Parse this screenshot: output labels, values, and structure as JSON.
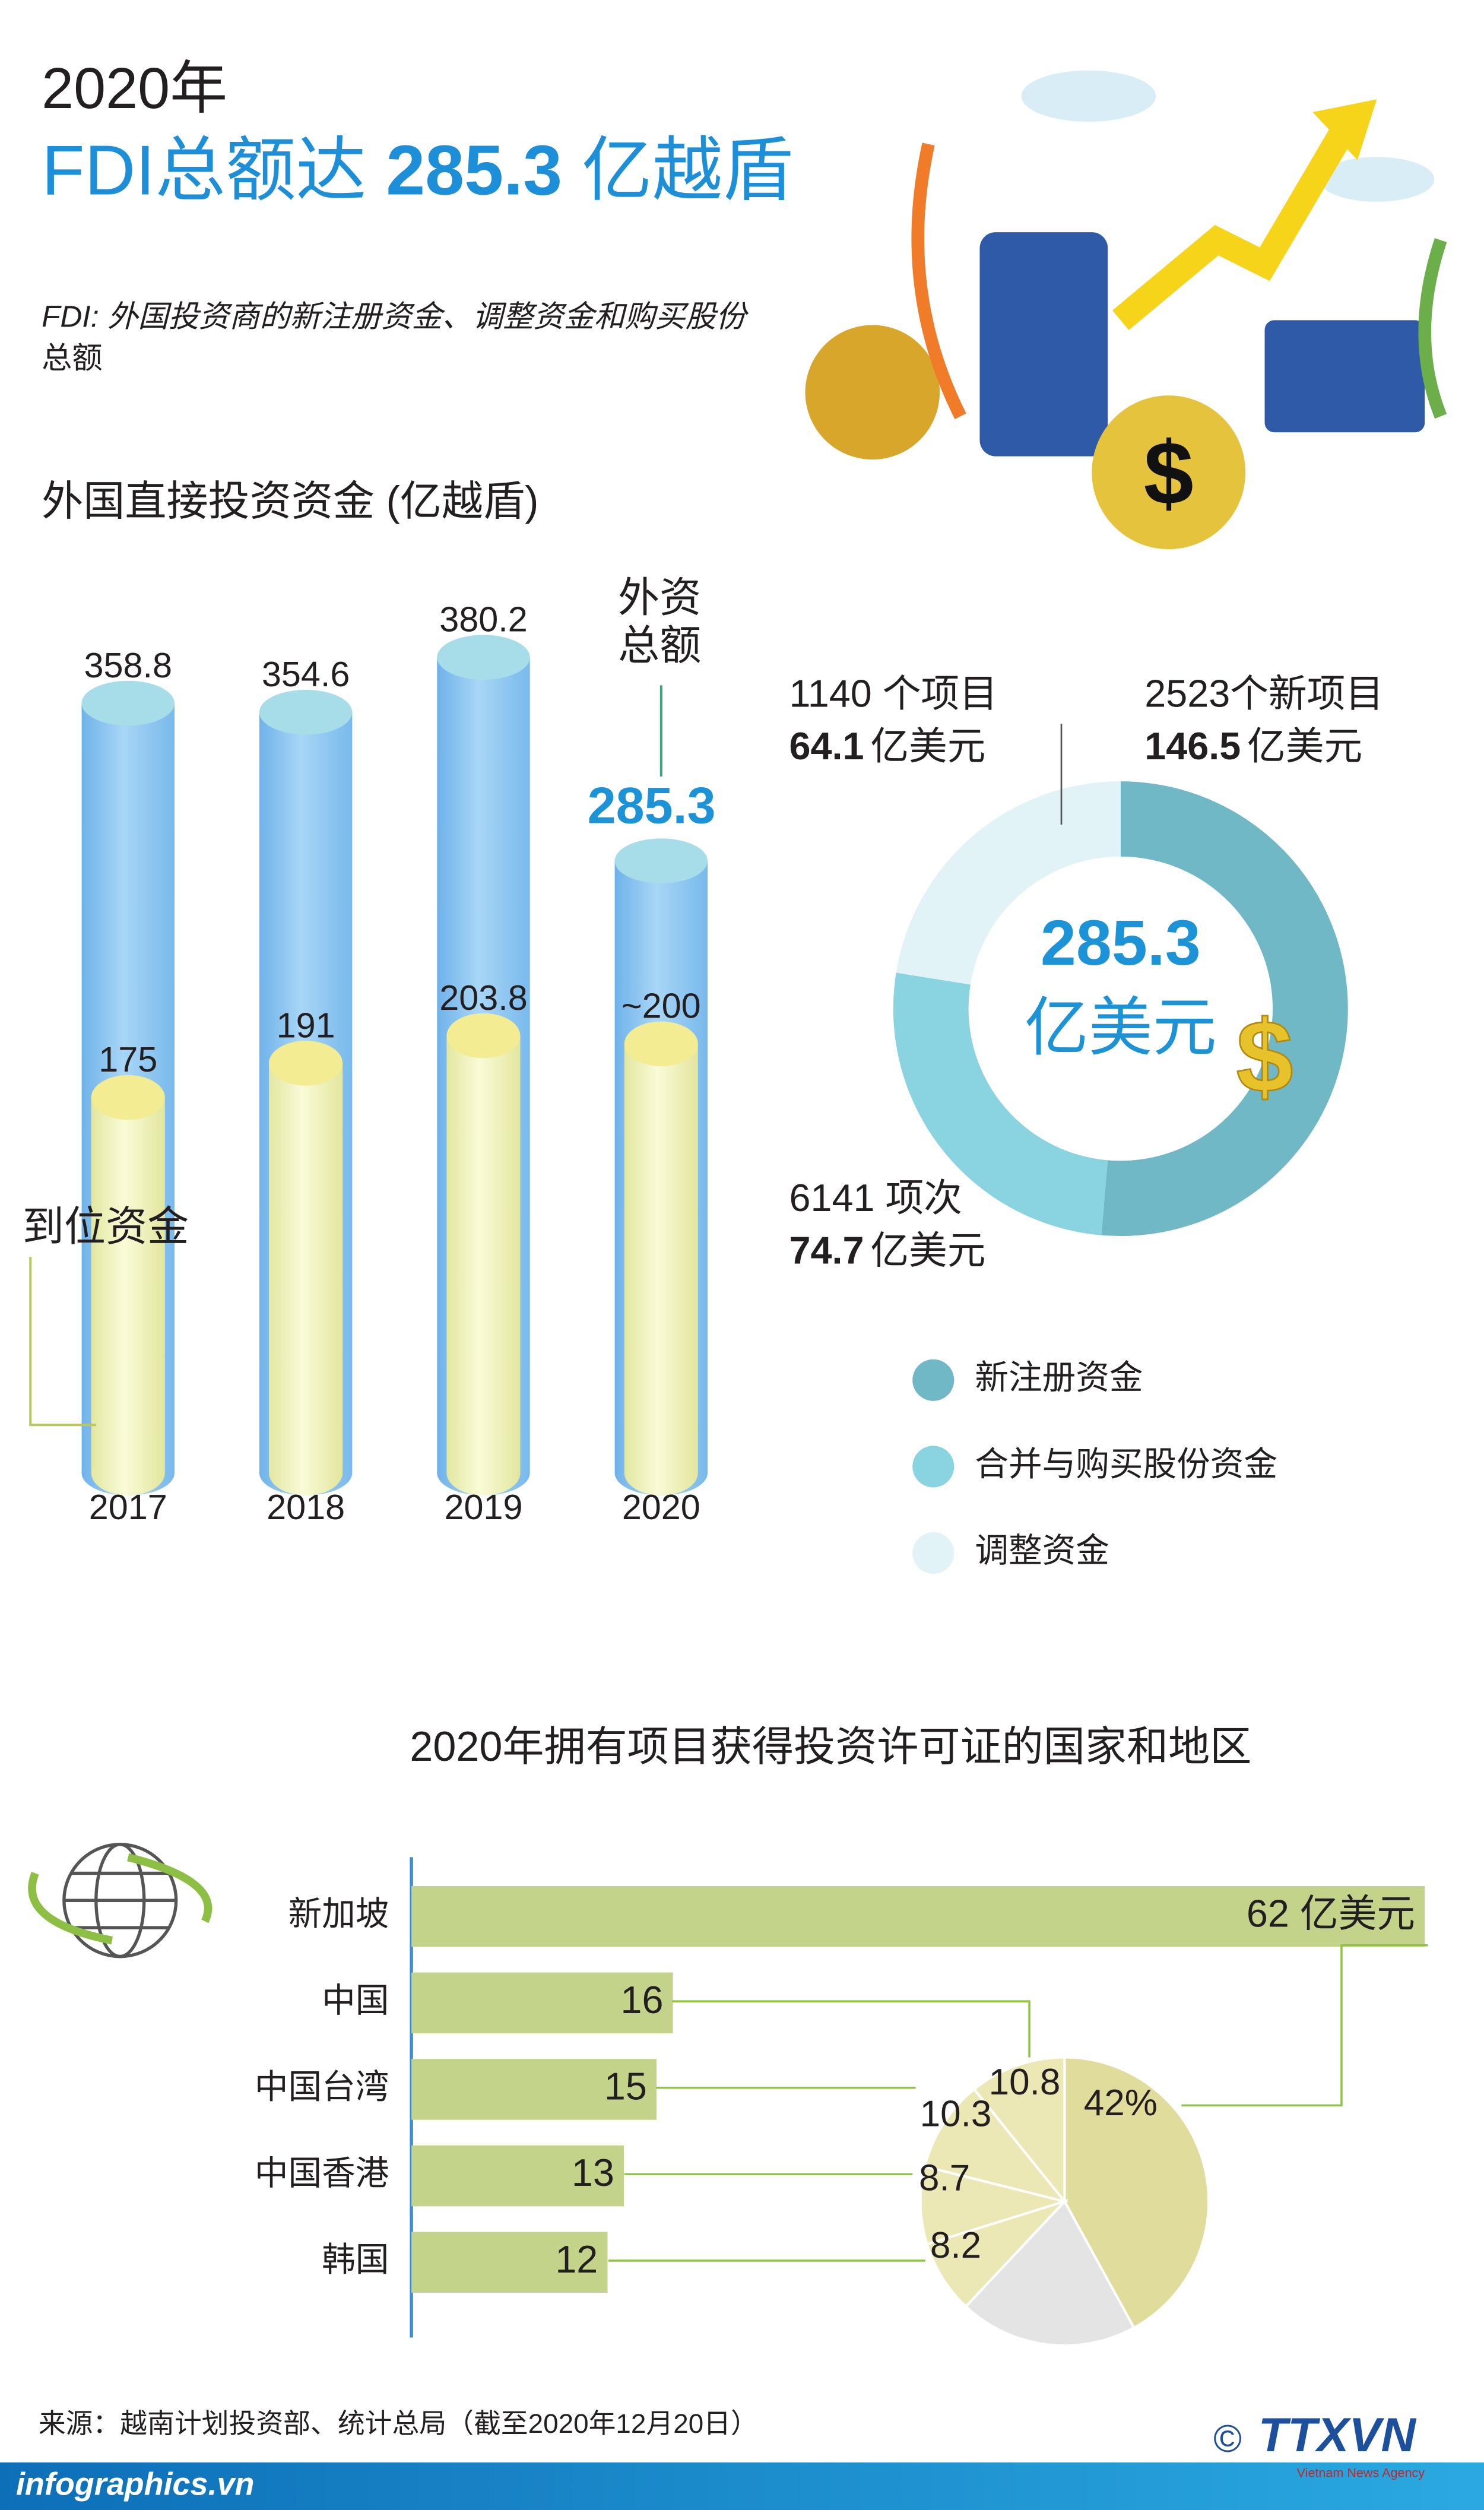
{
  "header": {
    "year": "2020年",
    "title_pre": "FDI总额达",
    "title_value": "285.3",
    "title_post": "亿越盾",
    "note_lines": [
      "FDI: 外国投资商的新注册资金、调整资金和购买股份",
      "总额"
    ]
  },
  "chart_data": [
    {
      "type": "cylinder",
      "title": "外国直接投资资金 (亿越盾)",
      "categories": [
        "2017",
        "2018",
        "2019",
        "2020"
      ],
      "ylim": [
        0,
        400
      ],
      "series": [
        {
          "name": "外资总额",
          "color": "#8ec5ef",
          "values": [
            358.8,
            354.6,
            380.2,
            285.3
          ]
        },
        {
          "name": "到位资金",
          "color": "#eef1b0",
          "values": [
            175,
            191,
            203.8,
            200
          ],
          "value_labels": [
            "175",
            "191",
            "203.8",
            "~200"
          ]
        }
      ]
    },
    {
      "type": "donut",
      "categories": [
        "新注册资金",
        "合并与购买股份资金",
        "调整资金"
      ],
      "labels": [
        "2523个新项目",
        "6141 项次",
        "1140 个项目"
      ],
      "values": [
        146.5,
        74.7,
        64.1
      ],
      "colors": [
        "#71b8c6",
        "#8ad3e0",
        "#e2f3f7"
      ],
      "unit": "亿美元",
      "total": 285.3
    },
    {
      "type": "hbar",
      "title": "2020年拥有项目获得投资许可证的国家和地区",
      "categories": [
        "新加坡",
        "中国",
        "中国台湾",
        "中国香港",
        "韩国"
      ],
      "values": [
        62,
        16,
        15,
        13,
        12
      ],
      "value_labels": [
        "62 亿美元",
        "16",
        "15",
        "13",
        "12"
      ],
      "color": "#c3d48a",
      "xlim": [
        0,
        62
      ]
    },
    {
      "type": "pie",
      "values": [
        42,
        10.8,
        10.3,
        8.7,
        8.2,
        20
      ],
      "value_labels": [
        "42%",
        "10.8",
        "10.3",
        "8.7",
        "8.2",
        null
      ],
      "colors": [
        "#e0dc9c",
        "#ebe8b6",
        "#ebe8b6",
        "#ebe8b6",
        "#ebe8b6",
        "#e4e4e4"
      ]
    }
  ],
  "source": "来源：越南计划投资部、统计总局（截至2020年12月20日）",
  "footer": {
    "site": "infographics.vn",
    "agency": "TTXVN",
    "agency_en": "Vietnam News Agency"
  }
}
